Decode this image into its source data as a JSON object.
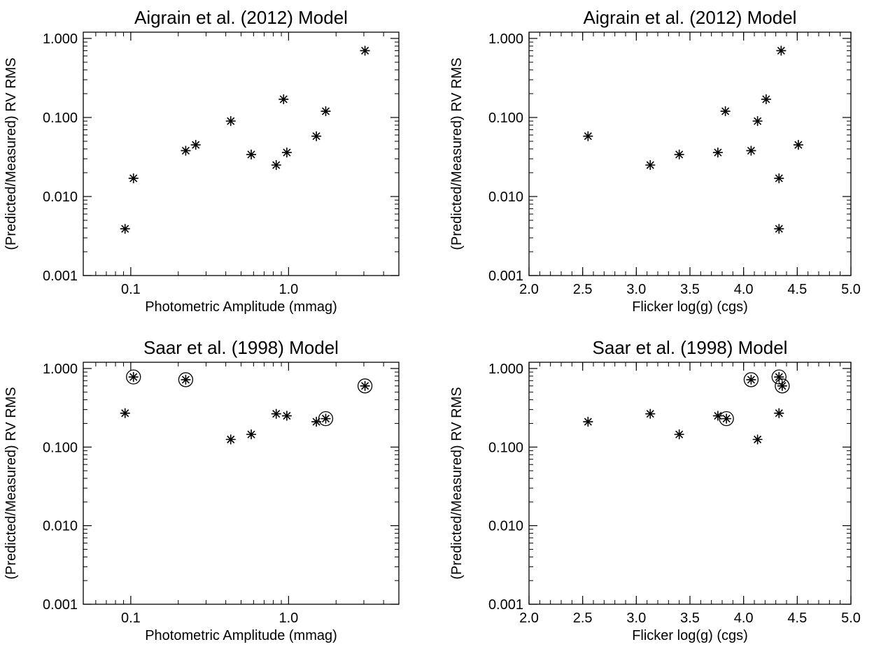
{
  "chart_data": [
    {
      "type": "scatter",
      "title": "Aigrain et al. (2012) Model",
      "xlabel": "Photometric Amplitude (mmag)",
      "ylabel": "(Predicted/Measured) RV RMS",
      "xscale": "log",
      "yscale": "log",
      "xlim": [
        0.05,
        5.0
      ],
      "ylim": [
        0.001,
        1.2
      ],
      "xticks": [
        {
          "value": 0.1,
          "label": "0.1"
        },
        {
          "value": 1.0,
          "label": "1.0"
        }
      ],
      "yticks": [
        {
          "value": 0.001,
          "label": "0.001"
        },
        {
          "value": 0.01,
          "label": "0.010"
        },
        {
          "value": 0.1,
          "label": "0.100"
        },
        {
          "value": 1.0,
          "label": "1.000"
        }
      ],
      "grid": false,
      "series": [
        {
          "marker": "asterisk",
          "points": [
            {
              "x": 0.092,
              "y": 0.0039
            },
            {
              "x": 0.104,
              "y": 0.017
            },
            {
              "x": 0.223,
              "y": 0.038
            },
            {
              "x": 0.258,
              "y": 0.045
            },
            {
              "x": 0.43,
              "y": 0.09
            },
            {
              "x": 0.58,
              "y": 0.034
            },
            {
              "x": 0.835,
              "y": 0.025
            },
            {
              "x": 0.93,
              "y": 0.17
            },
            {
              "x": 0.975,
              "y": 0.036
            },
            {
              "x": 1.5,
              "y": 0.058
            },
            {
              "x": 1.72,
              "y": 0.12
            },
            {
              "x": 3.05,
              "y": 0.7
            }
          ]
        }
      ]
    },
    {
      "type": "scatter",
      "title": "Aigrain et al. (2012) Model",
      "xlabel": "Flicker log(g) (cgs)",
      "ylabel": "(Predicted/Measured) RV RMS",
      "xscale": "linear",
      "yscale": "log",
      "xlim": [
        2.0,
        5.0
      ],
      "ylim": [
        0.001,
        1.2
      ],
      "xticks": [
        {
          "value": 2.0,
          "label": "2.0"
        },
        {
          "value": 2.5,
          "label": "2.5"
        },
        {
          "value": 3.0,
          "label": "3.0"
        },
        {
          "value": 3.5,
          "label": "3.5"
        },
        {
          "value": 4.0,
          "label": "4.0"
        },
        {
          "value": 4.5,
          "label": "4.5"
        },
        {
          "value": 5.0,
          "label": "5.0"
        }
      ],
      "yticks": [
        {
          "value": 0.001,
          "label": "0.001"
        },
        {
          "value": 0.01,
          "label": "0.010"
        },
        {
          "value": 0.1,
          "label": "0.100"
        },
        {
          "value": 1.0,
          "label": "1.000"
        }
      ],
      "grid": false,
      "series": [
        {
          "marker": "asterisk",
          "points": [
            {
              "x": 2.55,
              "y": 0.058
            },
            {
              "x": 3.13,
              "y": 0.025
            },
            {
              "x": 3.4,
              "y": 0.034
            },
            {
              "x": 3.76,
              "y": 0.036
            },
            {
              "x": 3.83,
              "y": 0.12
            },
            {
              "x": 4.07,
              "y": 0.038
            },
            {
              "x": 4.13,
              "y": 0.09
            },
            {
              "x": 4.21,
              "y": 0.17
            },
            {
              "x": 4.33,
              "y": 0.017
            },
            {
              "x": 4.33,
              "y": 0.0039
            },
            {
              "x": 4.35,
              "y": 0.7
            },
            {
              "x": 4.51,
              "y": 0.045
            }
          ]
        }
      ]
    },
    {
      "type": "scatter",
      "title": "Saar et al. (1998) Model",
      "xlabel": "Photometric Amplitude (mmag)",
      "ylabel": "(Predicted/Measured) RV RMS",
      "xscale": "log",
      "yscale": "log",
      "xlim": [
        0.05,
        5.0
      ],
      "ylim": [
        0.001,
        1.2
      ],
      "xticks": [
        {
          "value": 0.1,
          "label": "0.1"
        },
        {
          "value": 1.0,
          "label": "1.0"
        }
      ],
      "yticks": [
        {
          "value": 0.001,
          "label": "0.001"
        },
        {
          "value": 0.01,
          "label": "0.010"
        },
        {
          "value": 0.1,
          "label": "0.100"
        },
        {
          "value": 1.0,
          "label": "1.000"
        }
      ],
      "grid": false,
      "series": [
        {
          "marker": "asterisk",
          "points": [
            {
              "x": 0.092,
              "y": 0.27
            },
            {
              "x": 0.104,
              "y": 0.78,
              "circled": true
            },
            {
              "x": 0.223,
              "y": 0.72,
              "circled": true
            },
            {
              "x": 0.43,
              "y": 0.125
            },
            {
              "x": 0.58,
              "y": 0.145
            },
            {
              "x": 0.835,
              "y": 0.265
            },
            {
              "x": 0.975,
              "y": 0.25
            },
            {
              "x": 1.5,
              "y": 0.21
            },
            {
              "x": 1.72,
              "y": 0.23,
              "circled": true
            },
            {
              "x": 3.05,
              "y": 0.6,
              "circled": true
            }
          ]
        }
      ]
    },
    {
      "type": "scatter",
      "title": "Saar et al. (1998) Model",
      "xlabel": "Flicker log(g) (cgs)",
      "ylabel": "(Predicted/Measured) RV RMS",
      "xscale": "linear",
      "yscale": "log",
      "xlim": [
        2.0,
        5.0
      ],
      "ylim": [
        0.001,
        1.2
      ],
      "xticks": [
        {
          "value": 2.0,
          "label": "2.0"
        },
        {
          "value": 2.5,
          "label": "2.5"
        },
        {
          "value": 3.0,
          "label": "3.0"
        },
        {
          "value": 3.5,
          "label": "3.5"
        },
        {
          "value": 4.0,
          "label": "4.0"
        },
        {
          "value": 4.5,
          "label": "4.5"
        },
        {
          "value": 5.0,
          "label": "5.0"
        }
      ],
      "yticks": [
        {
          "value": 0.001,
          "label": "0.001"
        },
        {
          "value": 0.01,
          "label": "0.010"
        },
        {
          "value": 0.1,
          "label": "0.100"
        },
        {
          "value": 1.0,
          "label": "1.000"
        }
      ],
      "grid": false,
      "series": [
        {
          "marker": "asterisk",
          "points": [
            {
              "x": 2.55,
              "y": 0.21
            },
            {
              "x": 3.13,
              "y": 0.265
            },
            {
              "x": 3.4,
              "y": 0.145
            },
            {
              "x": 3.76,
              "y": 0.25
            },
            {
              "x": 3.84,
              "y": 0.23,
              "circled": true
            },
            {
              "x": 4.07,
              "y": 0.72,
              "circled": true
            },
            {
              "x": 4.13,
              "y": 0.125
            },
            {
              "x": 4.33,
              "y": 0.78,
              "circled": true
            },
            {
              "x": 4.33,
              "y": 0.27
            },
            {
              "x": 4.36,
              "y": 0.6,
              "circled": true
            }
          ]
        }
      ]
    }
  ]
}
